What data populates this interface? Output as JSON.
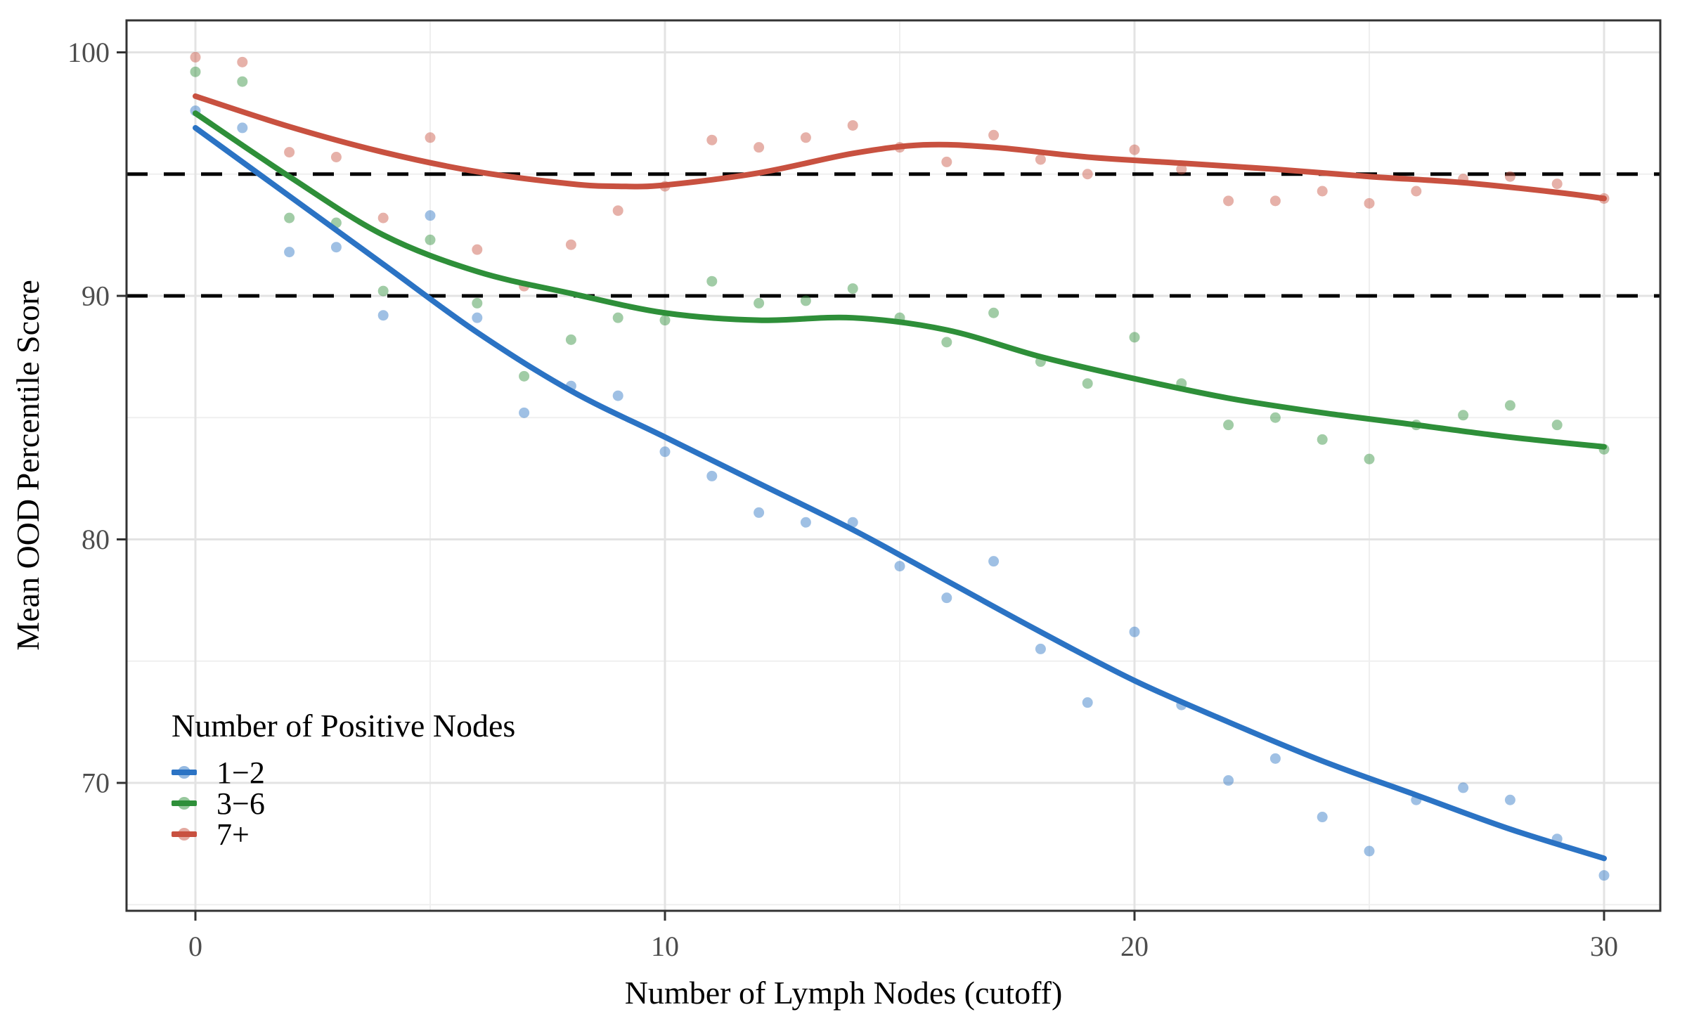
{
  "chart_data": {
    "type": "scatter",
    "subtype": "scatter-with-loess-smooth",
    "xlabel": "Number of Lymph Nodes (cutoff)",
    "ylabel": "Mean OOD Percentile Score",
    "legend_title": "Number of Positive Nodes",
    "legend_position": "inside-bottom-left",
    "grid": "major-and-minor",
    "xlim": [
      -1.5,
      31.2
    ],
    "ylim": [
      64.7,
      101.3
    ],
    "x_ticks": [
      0,
      10,
      20,
      30
    ],
    "x_minor_ticks": [
      5,
      15,
      25
    ],
    "y_ticks": [
      100,
      90,
      80,
      70
    ],
    "y_minor_ticks": [
      95,
      85,
      75,
      65
    ],
    "threshold_lines": [
      95,
      90
    ],
    "threshold_style": "black-dashed",
    "x": [
      0,
      1,
      2,
      3,
      4,
      5,
      6,
      7,
      8,
      9,
      10,
      11,
      12,
      13,
      14,
      15,
      16,
      17,
      18,
      19,
      20,
      21,
      22,
      23,
      24,
      25,
      26,
      27,
      28,
      29,
      30
    ],
    "series": [
      {
        "name": "1−2",
        "color": "#2B73C4",
        "point_opacity": 0.45,
        "values": [
          97.6,
          96.9,
          91.8,
          92.0,
          89.2,
          93.3,
          89.1,
          85.2,
          86.3,
          85.9,
          83.6,
          82.6,
          81.1,
          80.7,
          80.7,
          78.9,
          77.6,
          79.1,
          75.5,
          73.3,
          76.2,
          73.2,
          70.1,
          71.0,
          68.6,
          67.2,
          69.3,
          69.8,
          69.3,
          67.7,
          66.2
        ],
        "curve": [
          [
            0,
            96.9
          ],
          [
            2,
            94.1
          ],
          [
            4,
            91.3
          ],
          [
            6,
            88.5
          ],
          [
            8,
            86.1
          ],
          [
            10,
            84.2
          ],
          [
            12,
            82.3
          ],
          [
            14,
            80.4
          ],
          [
            16,
            78.3
          ],
          [
            18,
            76.2
          ],
          [
            20,
            74.2
          ],
          [
            22,
            72.5
          ],
          [
            24,
            70.9
          ],
          [
            26,
            69.5
          ],
          [
            28,
            68.1
          ],
          [
            30,
            66.9
          ]
        ]
      },
      {
        "name": "3−6",
        "color": "#2E8F39",
        "point_opacity": 0.45,
        "values": [
          99.2,
          98.8,
          93.2,
          93.0,
          90.2,
          92.3,
          89.7,
          86.7,
          88.2,
          89.1,
          89.0,
          90.6,
          89.7,
          89.8,
          90.3,
          89.1,
          88.1,
          89.3,
          87.3,
          86.4,
          88.3,
          86.4,
          84.7,
          85.0,
          84.1,
          83.3,
          84.7,
          85.1,
          85.5,
          84.7,
          83.7
        ],
        "curve": [
          [
            0,
            97.5
          ],
          [
            2,
            94.9
          ],
          [
            4,
            92.5
          ],
          [
            6,
            91.0
          ],
          [
            8,
            90.1
          ],
          [
            10,
            89.3
          ],
          [
            12,
            89.0
          ],
          [
            14,
            89.1
          ],
          [
            16,
            88.6
          ],
          [
            18,
            87.5
          ],
          [
            20,
            86.6
          ],
          [
            22,
            85.8
          ],
          [
            24,
            85.2
          ],
          [
            26,
            84.7
          ],
          [
            28,
            84.2
          ],
          [
            30,
            83.8
          ]
        ]
      },
      {
        "name": "7+",
        "color": "#C85140",
        "point_opacity": 0.45,
        "values": [
          99.8,
          99.6,
          95.9,
          95.7,
          93.2,
          96.5,
          91.9,
          90.4,
          92.1,
          93.5,
          94.5,
          96.4,
          96.1,
          96.5,
          97.0,
          96.1,
          95.5,
          96.6,
          95.6,
          95.0,
          96.0,
          95.2,
          93.9,
          93.9,
          94.3,
          93.8,
          94.3,
          94.8,
          94.9,
          94.6,
          94.0
        ],
        "curve": [
          [
            0,
            98.2
          ],
          [
            2,
            96.95
          ],
          [
            4,
            95.9
          ],
          [
            6,
            95.1
          ],
          [
            8,
            94.6
          ],
          [
            9,
            94.5
          ],
          [
            10,
            94.55
          ],
          [
            12,
            95.05
          ],
          [
            14,
            95.85
          ],
          [
            15.5,
            96.2
          ],
          [
            17,
            96.1
          ],
          [
            19,
            95.7
          ],
          [
            21,
            95.45
          ],
          [
            23,
            95.2
          ],
          [
            25,
            94.9
          ],
          [
            27,
            94.65
          ],
          [
            29,
            94.25
          ],
          [
            30,
            94.0
          ]
        ]
      }
    ],
    "colors": {
      "tick_label": "#4D4D4D",
      "axis_title": "#000000",
      "panel_border": "#333333",
      "grid_major": "#E3E3E3",
      "grid_minor": "#EFEFEF",
      "threshold": "#000000",
      "background": "#FFFFFF"
    }
  }
}
